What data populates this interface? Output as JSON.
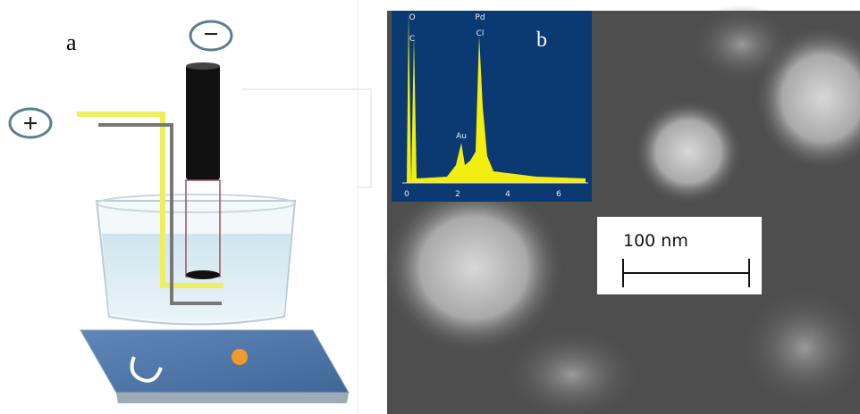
{
  "panel_a": {
    "label": "a",
    "cathode_sign": "−",
    "anode_sign": "+"
  },
  "panel_b": {
    "label": "b",
    "scale_bar": "100 nm",
    "eds_inset": {
      "peak_labels": [
        "O",
        "C",
        "Pd",
        "Cl",
        "Au"
      ],
      "xticks": [
        "0",
        "2",
        "4",
        "6"
      ]
    }
  }
}
